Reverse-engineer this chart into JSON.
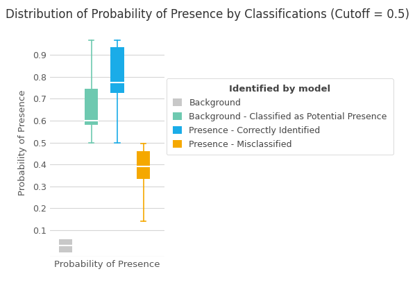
{
  "title": "Distribution of Probability of Presence by Classifications (Cutoff = 0.5)",
  "xlabel": "Probability of Presence",
  "ylabel": "Probability of Presence",
  "ylim": [
    -0.02,
    1.02
  ],
  "background_color": "#ffffff",
  "grid_color": "#d5d5d5",
  "boxes": [
    {
      "label": "Background",
      "color": "#c8c8c8",
      "x": 1,
      "q1": 0.0,
      "median": 0.03,
      "q3": 0.06,
      "whislo": 0.0,
      "whishi": 0.0
    },
    {
      "label": "Background - Classified as Potential Presence",
      "color": "#6ec9b0",
      "x": 2,
      "q1": 0.58,
      "median": 0.6,
      "q3": 0.745,
      "whislo": 0.5,
      "whishi": 0.965
    },
    {
      "label": "Presence - Correctly Identified",
      "color": "#1aace8",
      "x": 3,
      "q1": 0.725,
      "median": 0.775,
      "q3": 0.935,
      "whislo": 0.5,
      "whishi": 0.965
    },
    {
      "label": "Presence - Misclassified",
      "color": "#f5a800",
      "x": 4,
      "q1": 0.335,
      "median": 0.39,
      "q3": 0.46,
      "whislo": 0.14,
      "whishi": 0.495
    }
  ],
  "legend_title": "Identified by model",
  "title_fontsize": 12,
  "label_fontsize": 9.5,
  "tick_fontsize": 9,
  "legend_fontsize": 9
}
